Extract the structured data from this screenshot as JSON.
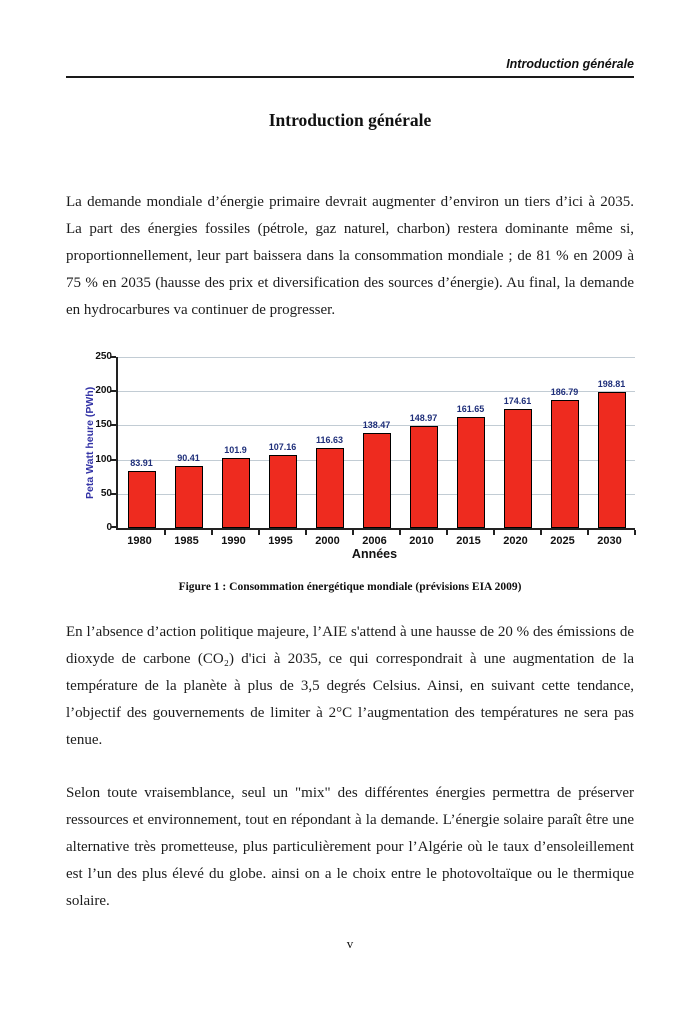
{
  "page": {
    "header": {
      "running_title": "Introduction générale"
    },
    "title": "Introduction générale",
    "paragraphs": {
      "p1": "La demande mondiale d’énergie primaire devrait augmenter d’environ un tiers d’ici à 2035. La part des énergies fossiles (pétrole, gaz naturel, charbon) restera dominante même si, proportionnellement, leur part baissera dans la consommation mondiale ; de 81 % en 2009 à 75 % en 2035 (hausse des prix et diversification des sources d’énergie). Au final, la demande en hydrocarbures va continuer de progresser.",
      "p2": "En l’absence d’action politique majeure, l’AIE s'attend à une hausse de 20 % des émissions de dioxyde de carbone (CO₂) d'ici à 2035, ce qui correspondrait à une augmentation de la température de la planète à plus de 3,5 degrés Celsius. Ainsi, en suivant cette tendance, l’objectif des gouvernements de limiter à 2°C l’augmentation des températures ne sera pas tenue.",
      "p3": "Selon toute vraisemblance, seul un \"mix\" des différentes énergies permettra de préserver ressources et environnement, tout en répondant à la demande. L’énergie solaire paraît être une alternative très prometteuse, plus particulièrement pour l’Algérie où le taux d’ensoleillement est l’un des plus élevé du globe. ainsi on a le choix entre le photovoltaïque ou le thermique solaire."
    },
    "figure_caption": "Figure 1 : Consommation énergétique mondiale (prévisions EIA 2009)",
    "page_number": "v"
  },
  "chart_data": {
    "type": "bar",
    "title": "",
    "categories": [
      "1980",
      "1985",
      "1990",
      "1995",
      "2000",
      "2006",
      "2010",
      "2015",
      "2020",
      "2025",
      "2030"
    ],
    "values": [
      83.91,
      90.41,
      101.9,
      107.16,
      116.63,
      138.47,
      148.97,
      161.65,
      174.61,
      186.79,
      198.81
    ],
    "labels": [
      "83.91",
      "90.41",
      "101.9",
      "107.16",
      "116.63",
      "138.47",
      "148.97",
      "161.65",
      "174.61",
      "186.79",
      "198.81"
    ],
    "xlabel": "Années",
    "ylabel": "Peta Watt heure (PWh)",
    "ylim": [
      0,
      250
    ],
    "yticks": [
      0,
      50,
      100,
      150,
      200,
      250
    ],
    "grid": true,
    "legend": "none",
    "bar_color": "#ee2b1f",
    "bar_border_color": "#000000",
    "value_label_color": "#1f2f7a",
    "ylabel_color": "#3333a6"
  }
}
